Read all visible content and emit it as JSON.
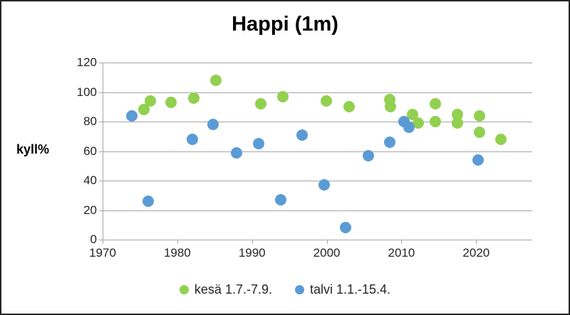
{
  "chart_data": {
    "type": "scatter",
    "title": "Happi (1m)",
    "xlabel": "",
    "ylabel": "kyll%",
    "xlim": [
      1970,
      2027.5
    ],
    "ylim": [
      0,
      120
    ],
    "x_ticks": [
      1970,
      1980,
      1990,
      2000,
      2010,
      2020
    ],
    "y_ticks": [
      0,
      20,
      40,
      60,
      80,
      100,
      120
    ],
    "grid": "horizontal",
    "axis_color": "#A6A6A6",
    "legend_position": "bottom",
    "series": [
      {
        "name": "kesä 1.7.-7.9.",
        "color": "#92D050",
        "points": [
          [
            1975.5,
            88
          ],
          [
            1976.4,
            94
          ],
          [
            1979.2,
            93
          ],
          [
            1982.2,
            96
          ],
          [
            1985.2,
            108
          ],
          [
            1991.2,
            92
          ],
          [
            1994.1,
            97
          ],
          [
            1999.9,
            94
          ],
          [
            2003.0,
            90
          ],
          [
            2008.4,
            95
          ],
          [
            2008.5,
            90
          ],
          [
            2011.5,
            85
          ],
          [
            2012.2,
            79
          ],
          [
            2014.5,
            92
          ],
          [
            2014.5,
            80
          ],
          [
            2017.5,
            85
          ],
          [
            2017.5,
            79
          ],
          [
            2020.4,
            84
          ],
          [
            2020.4,
            73
          ],
          [
            2023.3,
            68
          ]
        ]
      },
      {
        "name": "talvi 1.1.-15.4.",
        "color": "#5B9BD5",
        "points": [
          [
            1973.9,
            84
          ],
          [
            1976.1,
            26
          ],
          [
            1982.0,
            68
          ],
          [
            1984.8,
            78
          ],
          [
            1987.9,
            59
          ],
          [
            1990.9,
            65
          ],
          [
            1993.8,
            27
          ],
          [
            1996.7,
            71
          ],
          [
            1999.7,
            37
          ],
          [
            2002.5,
            8
          ],
          [
            2005.6,
            57
          ],
          [
            2008.4,
            66
          ],
          [
            2010.3,
            80
          ],
          [
            2011.0,
            76
          ],
          [
            2020.3,
            54
          ]
        ]
      }
    ]
  }
}
